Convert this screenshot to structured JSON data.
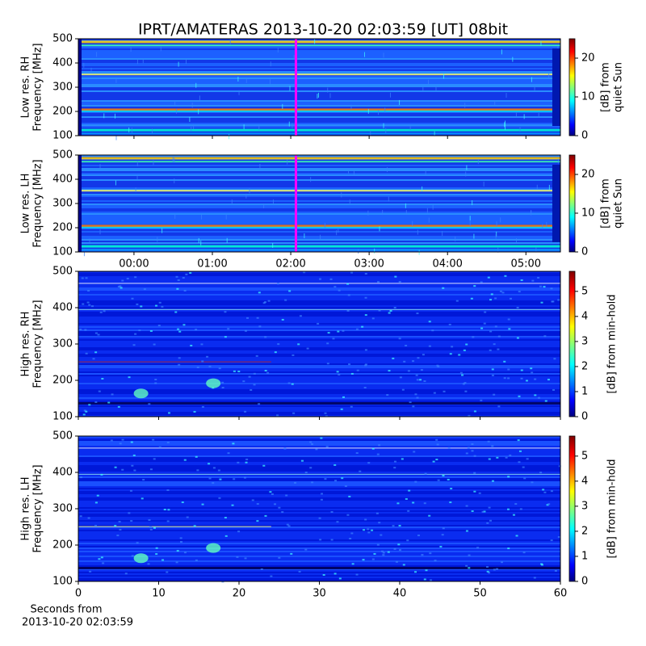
{
  "title": "IPRT/AMATERAS 2013-10-20 02:03:59 [UT]   08bit",
  "chart_data": [
    {
      "type": "heatmap",
      "ylabel": [
        "Low res. RH",
        "Frequency [MHz]"
      ],
      "ylim": [
        100,
        500
      ],
      "yticks": [
        100,
        200,
        300,
        400,
        500
      ],
      "marker_x": 2.066,
      "marker_color": "#ff00ff",
      "colorbar_label": [
        "[dB] from",
        "quiet Sun"
      ],
      "clim": [
        0,
        25
      ],
      "cticks": [
        0,
        10,
        20
      ]
    },
    {
      "type": "heatmap",
      "ylabel": [
        "Low res. LH",
        "Frequency [MHz]"
      ],
      "ylim": [
        100,
        500
      ],
      "yticks": [
        100,
        200,
        300,
        400,
        500
      ],
      "xlim": [
        -0.71,
        5.44
      ],
      "xticks": [
        {
          "value": 0,
          "label": "00:00"
        },
        {
          "value": 1,
          "label": "01:00"
        },
        {
          "value": 2,
          "label": "02:00"
        },
        {
          "value": 3,
          "label": "03:00"
        },
        {
          "value": 4,
          "label": "04:00"
        },
        {
          "value": 5,
          "label": "05:00"
        }
      ],
      "marker_x": 2.066,
      "marker_color": "#ff00ff",
      "colorbar_label": [
        "[dB] from",
        "quiet Sun"
      ],
      "clim": [
        0,
        25
      ],
      "cticks": [
        0,
        10,
        20
      ]
    },
    {
      "type": "heatmap",
      "ylabel": [
        "High res. RH",
        "Frequency [MHz]"
      ],
      "ylim": [
        100,
        500
      ],
      "yticks": [
        100,
        200,
        300,
        400,
        500
      ],
      "colorbar_label": [
        "[dB] from min-hold"
      ],
      "clim": [
        0,
        5.8
      ],
      "cticks": [
        0,
        1,
        2,
        3,
        4,
        5
      ]
    },
    {
      "type": "heatmap",
      "ylabel": [
        "High res. LH",
        "Frequency [MHz]"
      ],
      "ylim": [
        100,
        500
      ],
      "yticks": [
        100,
        200,
        300,
        400,
        500
      ],
      "xlim": [
        0,
        60
      ],
      "xticks": [
        0,
        10,
        20,
        30,
        40,
        50,
        60
      ],
      "xlabel": [
        "Seconds from",
        "2013-10-20 02:03:59"
      ],
      "colorbar_label": [
        "[dB] from min-hold"
      ],
      "clim": [
        0,
        5.8
      ],
      "cticks": [
        0,
        1,
        2,
        3,
        4,
        5
      ]
    }
  ]
}
